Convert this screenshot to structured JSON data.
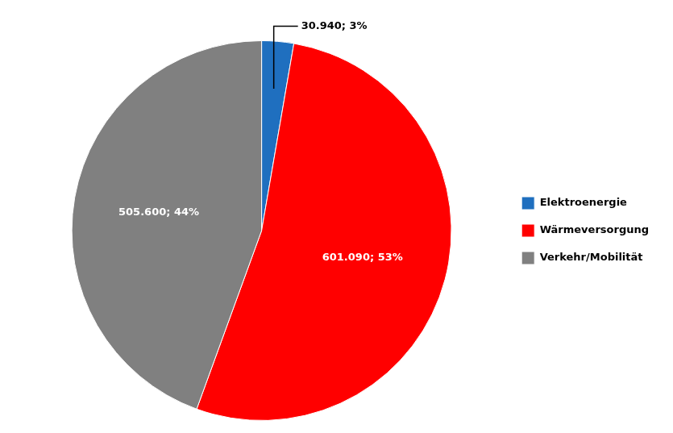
{
  "chart_data": {
    "type": "pie",
    "categories": [
      "Elektroenergie",
      "Wärmeversorgung",
      "Verkehr/Mobilität"
    ],
    "values": [
      30940,
      601090,
      505600
    ],
    "value_labels": [
      "30.940; 3%",
      "601.090; 53%",
      "505.600; 44%"
    ],
    "colors": [
      "#1F6FBF",
      "#FF0000",
      "#808080"
    ],
    "legend": "right",
    "data_labels": true
  }
}
